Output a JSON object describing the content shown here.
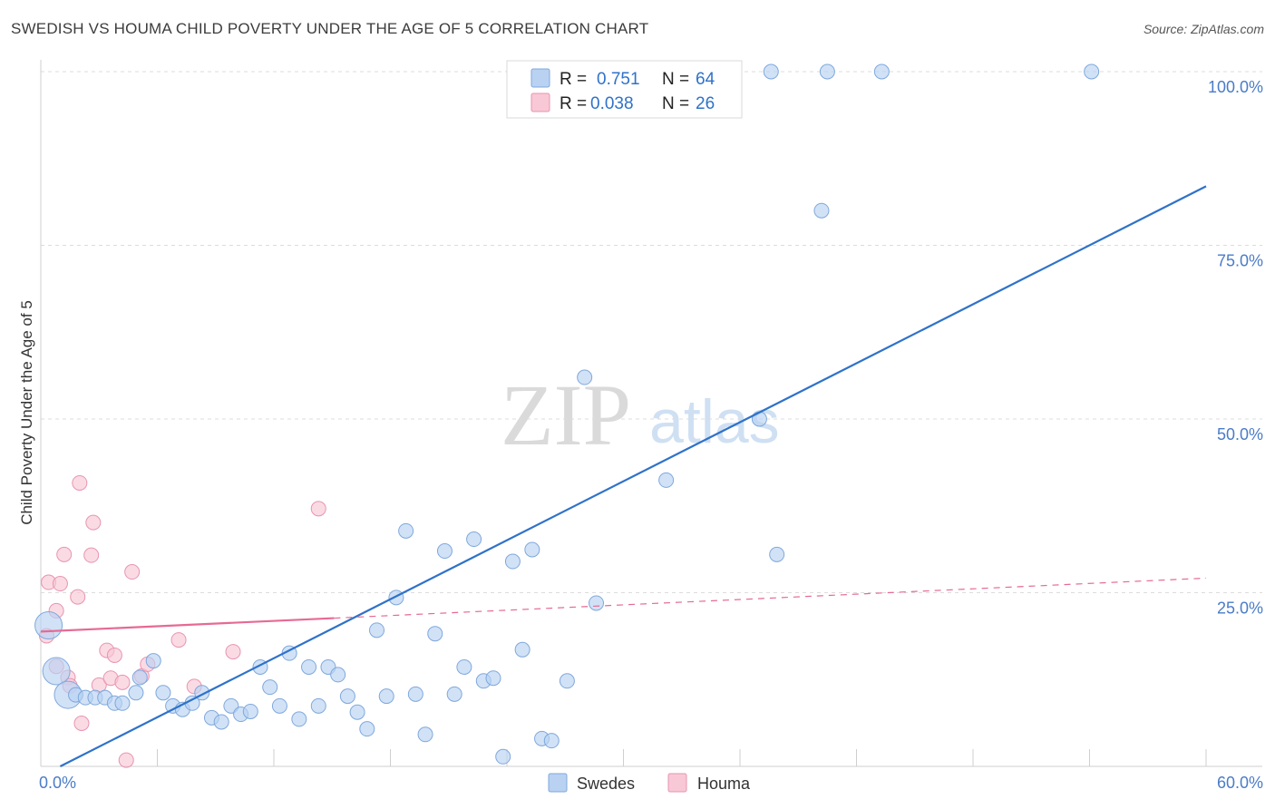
{
  "header": {
    "title": "SWEDISH VS HOUMA CHILD POVERTY UNDER THE AGE OF 5 CORRELATION CHART",
    "source": "Source: ZipAtlas.com"
  },
  "watermark": {
    "zip": "ZIP",
    "atlas": "atlas"
  },
  "legend": {
    "rows": [
      {
        "r_label": "R =",
        "r_value": "0.751",
        "n_label": "N =",
        "n_value": "64"
      },
      {
        "r_label": "R =",
        "r_value": "0.038",
        "n_label": "N =",
        "n_value": "26"
      }
    ]
  },
  "colors": {
    "swedes_fill": "#b9d2f2",
    "swedes_stroke": "#7fa8dc",
    "swedes_line": "#2f72c9",
    "houma_fill": "#f8c8d6",
    "houma_stroke": "#e994b0",
    "houma_line": "#e66a93",
    "grid": "#dcdcdc"
  },
  "chart_data": {
    "type": "scatter",
    "title": "SWEDISH VS HOUMA CHILD POVERTY UNDER THE AGE OF 5 CORRELATION CHART",
    "xlabel": "",
    "ylabel": "Child Poverty Under the Age of 5",
    "xlim": [
      0,
      60
    ],
    "ylim": [
      0,
      100
    ],
    "x_tick_labels": [
      {
        "value": 0,
        "label": "0.0%"
      },
      {
        "value": 60,
        "label": "60.0%"
      }
    ],
    "y_tick_labels": [
      {
        "value": 25,
        "label": "25.0%"
      },
      {
        "value": 50,
        "label": "50.0%"
      },
      {
        "value": 75,
        "label": "75.0%"
      },
      {
        "value": 100,
        "label": "100.0%"
      }
    ],
    "grid": true,
    "legend_position": "top-center",
    "series": [
      {
        "name": "Swedes",
        "R": 0.751,
        "N": 64,
        "trend": {
          "x": [
            1.0,
            60.0
          ],
          "y": [
            0.0,
            83.5
          ]
        },
        "points": [
          {
            "x": 0.4,
            "y": 20.3,
            "big": true
          },
          {
            "x": 0.8,
            "y": 13.7,
            "big": true
          },
          {
            "x": 1.4,
            "y": 10.3,
            "big": true
          },
          {
            "x": 1.8,
            "y": 10.3
          },
          {
            "x": 2.3,
            "y": 9.9
          },
          {
            "x": 2.8,
            "y": 9.9
          },
          {
            "x": 3.3,
            "y": 9.9
          },
          {
            "x": 3.8,
            "y": 9.1
          },
          {
            "x": 4.2,
            "y": 9.1
          },
          {
            "x": 4.9,
            "y": 10.6
          },
          {
            "x": 5.1,
            "y": 12.8
          },
          {
            "x": 5.8,
            "y": 15.2
          },
          {
            "x": 6.3,
            "y": 10.6
          },
          {
            "x": 6.8,
            "y": 8.7
          },
          {
            "x": 7.3,
            "y": 8.2
          },
          {
            "x": 7.8,
            "y": 9.1
          },
          {
            "x": 8.3,
            "y": 10.6
          },
          {
            "x": 8.8,
            "y": 7.0
          },
          {
            "x": 9.3,
            "y": 6.4
          },
          {
            "x": 9.8,
            "y": 8.7
          },
          {
            "x": 10.3,
            "y": 7.5
          },
          {
            "x": 10.8,
            "y": 7.9
          },
          {
            "x": 11.3,
            "y": 14.3
          },
          {
            "x": 11.8,
            "y": 11.4
          },
          {
            "x": 12.3,
            "y": 8.7
          },
          {
            "x": 12.8,
            "y": 16.3
          },
          {
            "x": 13.3,
            "y": 6.8
          },
          {
            "x": 13.8,
            "y": 14.3
          },
          {
            "x": 14.3,
            "y": 8.7
          },
          {
            "x": 14.8,
            "y": 14.3
          },
          {
            "x": 15.3,
            "y": 13.2
          },
          {
            "x": 15.8,
            "y": 10.1
          },
          {
            "x": 16.3,
            "y": 7.8
          },
          {
            "x": 16.8,
            "y": 5.4
          },
          {
            "x": 17.3,
            "y": 19.6
          },
          {
            "x": 17.8,
            "y": 10.1
          },
          {
            "x": 18.3,
            "y": 24.3
          },
          {
            "x": 18.8,
            "y": 33.9
          },
          {
            "x": 19.3,
            "y": 10.4
          },
          {
            "x": 19.8,
            "y": 4.6
          },
          {
            "x": 20.3,
            "y": 19.1
          },
          {
            "x": 20.8,
            "y": 31.0
          },
          {
            "x": 21.3,
            "y": 10.4
          },
          {
            "x": 21.8,
            "y": 14.3
          },
          {
            "x": 22.3,
            "y": 32.7
          },
          {
            "x": 22.8,
            "y": 12.3
          },
          {
            "x": 23.3,
            "y": 12.7
          },
          {
            "x": 23.8,
            "y": 1.4
          },
          {
            "x": 24.3,
            "y": 29.5
          },
          {
            "x": 24.8,
            "y": 16.8
          },
          {
            "x": 25.3,
            "y": 31.2
          },
          {
            "x": 25.8,
            "y": 4.0
          },
          {
            "x": 26.3,
            "y": 3.7
          },
          {
            "x": 27.1,
            "y": 12.3
          },
          {
            "x": 28.0,
            "y": 56.0
          },
          {
            "x": 28.6,
            "y": 23.5
          },
          {
            "x": 32.2,
            "y": 41.2
          },
          {
            "x": 37.0,
            "y": 50.0
          },
          {
            "x": 37.9,
            "y": 30.5
          },
          {
            "x": 40.2,
            "y": 80.0
          },
          {
            "x": 37.6,
            "y": 100.0
          },
          {
            "x": 40.5,
            "y": 100.0
          },
          {
            "x": 43.3,
            "y": 100.0
          },
          {
            "x": 54.1,
            "y": 100.0
          }
        ]
      },
      {
        "name": "Houma",
        "R": 0.038,
        "N": 26,
        "trend": {
          "x": [
            0.0,
            60.0
          ],
          "y": [
            19.4,
            27.1
          ]
        },
        "trend_solid_until_x": 15.1,
        "points": [
          {
            "x": 0.3,
            "y": 18.8
          },
          {
            "x": 0.4,
            "y": 26.5
          },
          {
            "x": 0.8,
            "y": 14.4
          },
          {
            "x": 0.8,
            "y": 22.4
          },
          {
            "x": 1.0,
            "y": 26.3
          },
          {
            "x": 1.2,
            "y": 30.5
          },
          {
            "x": 1.4,
            "y": 12.8
          },
          {
            "x": 1.5,
            "y": 11.6
          },
          {
            "x": 1.9,
            "y": 24.4
          },
          {
            "x": 2.0,
            "y": 40.8
          },
          {
            "x": 2.1,
            "y": 6.2
          },
          {
            "x": 2.6,
            "y": 30.4
          },
          {
            "x": 2.7,
            "y": 35.1
          },
          {
            "x": 3.0,
            "y": 11.7
          },
          {
            "x": 3.4,
            "y": 16.7
          },
          {
            "x": 3.6,
            "y": 12.7
          },
          {
            "x": 3.8,
            "y": 16.0
          },
          {
            "x": 4.2,
            "y": 12.1
          },
          {
            "x": 4.4,
            "y": 0.9
          },
          {
            "x": 4.7,
            "y": 28.0
          },
          {
            "x": 5.2,
            "y": 13.0
          },
          {
            "x": 5.5,
            "y": 14.7
          },
          {
            "x": 7.1,
            "y": 18.2
          },
          {
            "x": 7.9,
            "y": 11.5
          },
          {
            "x": 9.9,
            "y": 16.5
          },
          {
            "x": 14.3,
            "y": 37.1
          }
        ]
      }
    ]
  },
  "bottom_legend": {
    "items": [
      {
        "label": "Swedes"
      },
      {
        "label": "Houma"
      }
    ]
  }
}
